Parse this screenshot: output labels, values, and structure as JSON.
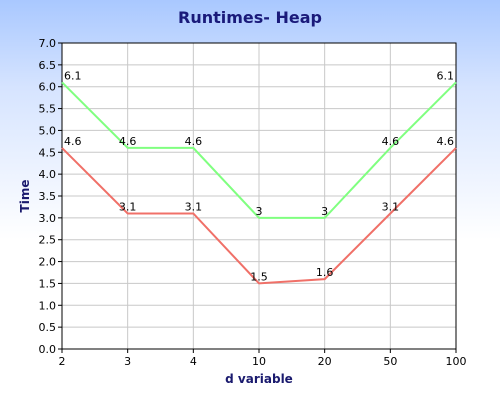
{
  "chart_data": {
    "type": "line",
    "title": "Runtimes- Heap",
    "xlabel": "d variable",
    "ylabel": "Time",
    "categories": [
      "2",
      "3",
      "4",
      "10",
      "20",
      "50",
      "100"
    ],
    "ylim": [
      0,
      7
    ],
    "yticks": [
      "0.0",
      "0.5",
      "1.0",
      "1.5",
      "2.0",
      "2.5",
      "3.0",
      "3.5",
      "4.0",
      "4.5",
      "5.0",
      "5.5",
      "6.0",
      "6.5",
      "7.0"
    ],
    "grid": true,
    "series": [
      {
        "color": "#80ff80",
        "values": [
          6.1,
          4.6,
          4.6,
          3,
          3,
          4.6,
          6.1
        ],
        "labels": [
          "6.1",
          "4.6",
          "4.6",
          "3",
          "3",
          "4.6",
          "6.1"
        ]
      },
      {
        "color": "#f07068",
        "values": [
          4.6,
          3.1,
          3.1,
          1.5,
          1.6,
          3.1,
          4.6
        ],
        "labels": [
          "4.6",
          "3.1",
          "3.1",
          "1.5",
          "1.6",
          "3.1",
          "4.6"
        ]
      }
    ],
    "colors": {
      "title": "#1a1a7a",
      "plot_background": "#ffffff",
      "grid": "#c8c8c8",
      "axis": "#000000"
    }
  }
}
